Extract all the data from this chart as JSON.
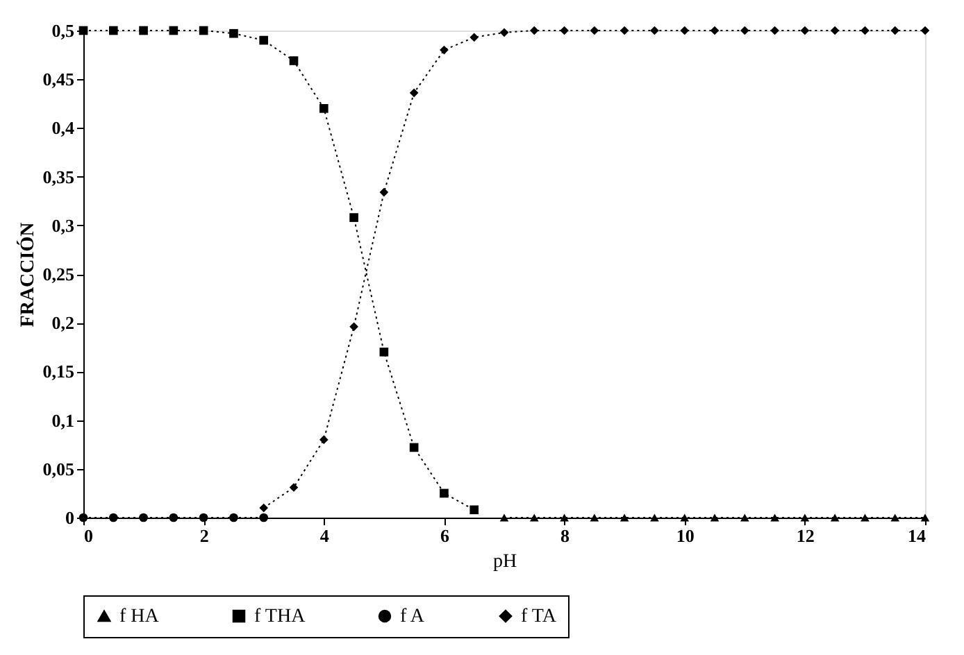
{
  "chart_data": {
    "type": "line",
    "xlabel": "pH",
    "ylabel": "FRACCIÓN",
    "x": [
      0,
      0.5,
      1,
      1.5,
      2,
      2.5,
      3,
      3.5,
      4,
      4.5,
      5,
      5.5,
      6,
      6.5,
      7,
      7.5,
      8,
      8.5,
      9,
      9.5,
      10,
      10.5,
      11,
      11.5,
      12,
      12.5,
      13,
      13.5,
      14
    ],
    "series": [
      {
        "name": "f HA",
        "color": "#000000",
        "marker": "triangle",
        "values": [
          null,
          null,
          null,
          null,
          null,
          null,
          null,
          null,
          null,
          null,
          null,
          null,
          null,
          null,
          0,
          0,
          0,
          0,
          0,
          0,
          0,
          0,
          0,
          0,
          0,
          0,
          0,
          0,
          0
        ]
      },
      {
        "name": "f THA",
        "color": "#000000",
        "marker": "square",
        "values": [
          0.5,
          0.5,
          0.5,
          0.5,
          0.5,
          0.497,
          0.49,
          0.469,
          0.42,
          0.308,
          0.17,
          0.072,
          0.025,
          0.008,
          null,
          null,
          null,
          null,
          null,
          null,
          null,
          null,
          null,
          null,
          null,
          null,
          null,
          null,
          null
        ]
      },
      {
        "name": "f A",
        "color": "#000000",
        "marker": "circle",
        "values": [
          0,
          0,
          0,
          0,
          0,
          0,
          0,
          null,
          null,
          null,
          null,
          null,
          null,
          null,
          null,
          null,
          null,
          null,
          null,
          null,
          null,
          null,
          null,
          null,
          null,
          null,
          null,
          null,
          null
        ]
      },
      {
        "name": "f TA",
        "color": "#000000",
        "marker": "diamond",
        "values": [
          null,
          null,
          null,
          null,
          null,
          null,
          0.01,
          0.031,
          0.08,
          0.196,
          0.334,
          0.436,
          0.48,
          0.493,
          0.498,
          0.5,
          0.5,
          0.5,
          0.5,
          0.5,
          0.5,
          0.5,
          0.5,
          0.5,
          0.5,
          0.5,
          0.5,
          0.5,
          0.5
        ]
      }
    ],
    "xlim": [
      0,
      14
    ],
    "xticks": [
      0,
      2,
      4,
      6,
      8,
      10,
      12,
      14
    ],
    "ylim": [
      0,
      0.5
    ],
    "yticks": [
      0,
      {
        "value": 0.05,
        "label": "0,05"
      },
      {
        "value": 0.1,
        "label": "0,1"
      },
      {
        "value": 0.15,
        "label": "0,15"
      },
      {
        "value": 0.2,
        "label": "0,2"
      },
      {
        "value": 0.25,
        "label": "0,25"
      },
      {
        "value": 0.3,
        "label": "0,3"
      },
      {
        "value": 0.35,
        "label": "0,35"
      },
      {
        "value": 0.4,
        "label": "0,4"
      },
      {
        "value": 0.45,
        "label": "0,45"
      },
      {
        "value": 0.5,
        "label": "0,5"
      }
    ],
    "grid": false,
    "legend": "bottom",
    "line_style": "dotted"
  }
}
